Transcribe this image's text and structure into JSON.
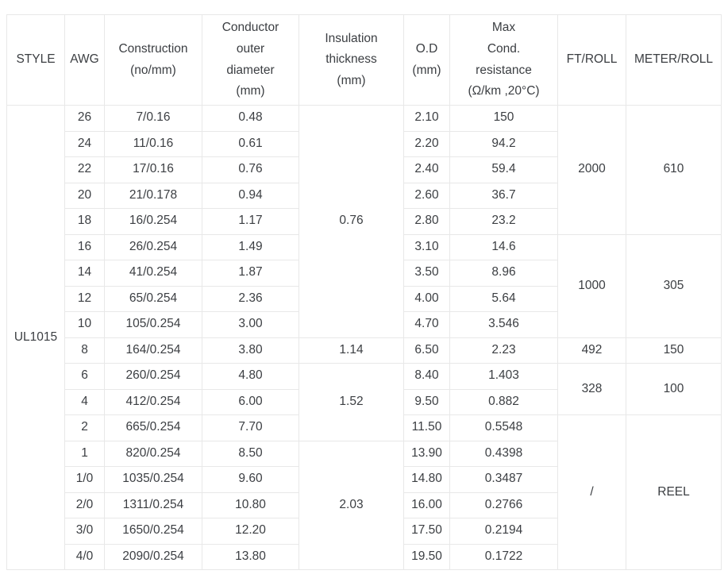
{
  "meta": {
    "description": "Wire specification table for UL1015 hook-up wire",
    "colors": {
      "background": "#ffffff",
      "text": "#3b3e42",
      "border_inner": "#e8e8e8",
      "border_outer": "#d6d6d6"
    }
  },
  "table": {
    "columns": [
      {
        "label": "STYLE"
      },
      {
        "label": "AWG"
      },
      {
        "label": "Construction\n(no/mm)"
      },
      {
        "label": "Conductor\nouter\ndiameter\n(mm)"
      },
      {
        "label": "Insulation\nthickness\n(mm)"
      },
      {
        "label": "O.D\n(mm)"
      },
      {
        "label": "Max\nCond.\nresistance\n(Ω/km ,20°C)"
      },
      {
        "label": "FT/ROLL"
      },
      {
        "label": "METER/ROLL"
      }
    ],
    "style_value": "UL1015",
    "rows": [
      [
        {
          "v": "UL1015",
          "rs": 18
        },
        "26",
        "7/0.16",
        "0.48",
        {
          "v": "0.76",
          "rs": 9
        },
        "2.10",
        "150",
        {
          "v": "2000",
          "rs": 5
        },
        {
          "v": "610",
          "rs": 5
        }
      ],
      [
        "24",
        "11/0.16",
        "0.61",
        "2.20",
        "94.2"
      ],
      [
        "22",
        "17/0.16",
        "0.76",
        "2.40",
        "59.4"
      ],
      [
        "20",
        "21/0.178",
        "0.94",
        "2.60",
        "36.7"
      ],
      [
        "18",
        "16/0.254",
        "1.17",
        "2.80",
        "23.2"
      ],
      [
        "16",
        "26/0.254",
        "1.49",
        "3.10",
        "14.6",
        {
          "v": "1000",
          "rs": 4
        },
        {
          "v": "305",
          "rs": 4
        }
      ],
      [
        "14",
        "41/0.254",
        "1.87",
        "3.50",
        "8.96"
      ],
      [
        "12",
        "65/0.254",
        "2.36",
        "4.00",
        "5.64"
      ],
      [
        "10",
        "105/0.254",
        "3.00",
        "4.70",
        "3.546"
      ],
      [
        "8",
        "164/0.254",
        "3.80",
        {
          "v": "1.14",
          "rs": 1
        },
        "6.50",
        "2.23",
        {
          "v": "492",
          "rs": 1
        },
        {
          "v": "150",
          "rs": 1
        }
      ],
      [
        "6",
        "260/0.254",
        "4.80",
        {
          "v": "1.52",
          "rs": 3
        },
        "8.40",
        "1.403",
        {
          "v": "328",
          "rs": 2
        },
        {
          "v": "100",
          "rs": 2
        }
      ],
      [
        "4",
        "412/0.254",
        "6.00",
        "9.50",
        "0.882"
      ],
      [
        "2",
        "665/0.254",
        "7.70",
        "11.50",
        "0.5548",
        {
          "v": "/",
          "rs": 6
        },
        {
          "v": "REEL",
          "rs": 6
        }
      ],
      [
        "1",
        "820/0.254",
        "8.50",
        {
          "v": "2.03",
          "rs": 5
        },
        "13.90",
        "0.4398"
      ],
      [
        "1/0",
        "1035/0.254",
        "9.60",
        "14.80",
        "0.3487"
      ],
      [
        "2/0",
        "1311/0.254",
        "10.80",
        "16.00",
        "0.2766"
      ],
      [
        "3/0",
        "1650/0.254",
        "12.20",
        "17.50",
        "0.2194"
      ],
      [
        "4/0",
        "2090/0.254",
        "13.80",
        "19.50",
        "0.1722"
      ]
    ]
  }
}
